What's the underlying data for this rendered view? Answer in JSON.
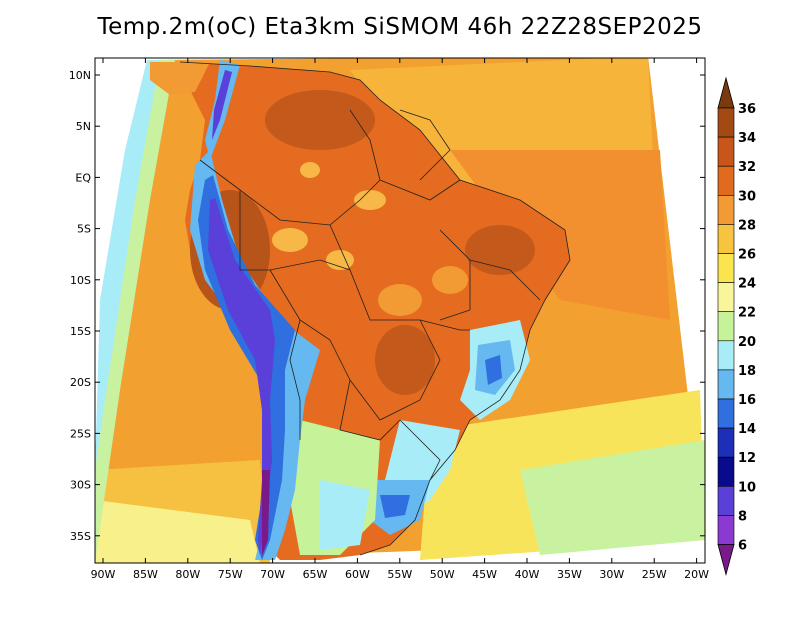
{
  "title": "Temp.2m(oC) Eta3km SiSMOM 46h 22Z28SEP2025",
  "map": {
    "lon_ticks": [
      "90W",
      "85W",
      "80W",
      "75W",
      "70W",
      "65W",
      "60W",
      "55W",
      "50W",
      "45W",
      "40W",
      "35W",
      "30W",
      "25W",
      "20W"
    ],
    "lat_ticks": [
      "10N",
      "5N",
      "EQ",
      "5S",
      "10S",
      "15S",
      "20S",
      "25S",
      "30S",
      "35S"
    ]
  },
  "colorbar": {
    "labels": [
      "36",
      "34",
      "32",
      "30",
      "28",
      "26",
      "24",
      "22",
      "20",
      "18",
      "16",
      "14",
      "12",
      "10",
      "8",
      "6"
    ],
    "colors": [
      "#7a3a10",
      "#a34a12",
      "#c8561a",
      "#e26a1f",
      "#f29a33",
      "#f7c43f",
      "#fbe54f",
      "#f8f59a",
      "#c6f29a",
      "#a8ecf8",
      "#66b8f0",
      "#2f6fe0",
      "#1b2fb8",
      "#0a0a8c",
      "#5a3fd8",
      "#8a3ad0",
      "#7a1a8a"
    ]
  }
}
